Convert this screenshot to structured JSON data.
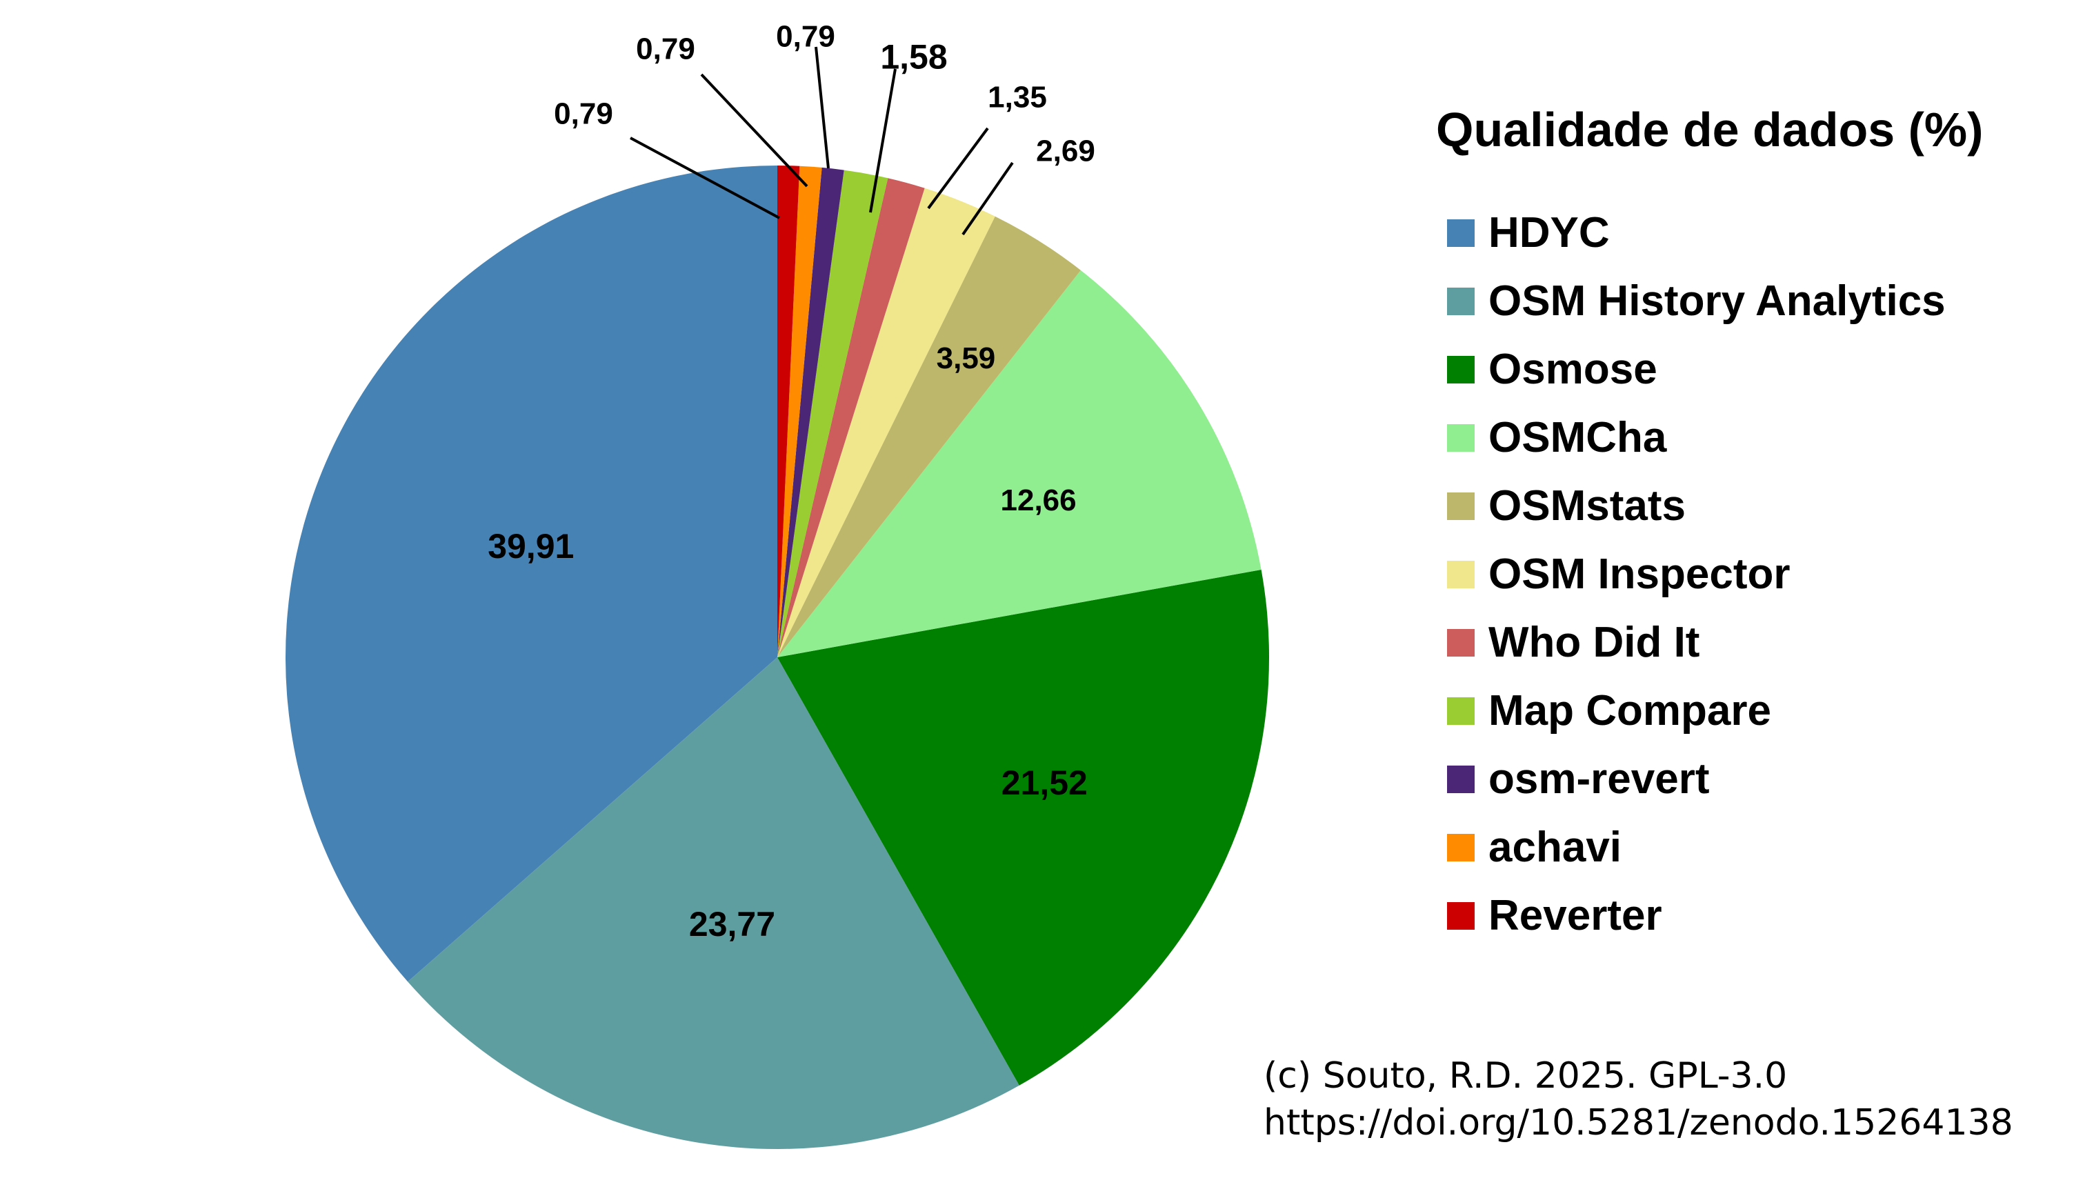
{
  "chart_data": {
    "type": "pie",
    "title": "Qualidade de dados (%)",
    "slices": [
      {
        "label": "HDYC",
        "value": 39.91,
        "value_label": "39,91",
        "color": "#4682b4"
      },
      {
        "label": "OSM History Analytics",
        "value": 23.77,
        "value_label": "23,77",
        "color": "#5f9ea0"
      },
      {
        "label": "Osmose",
        "value": 21.52,
        "value_label": "21,52",
        "color": "#008000"
      },
      {
        "label": "OSMCha",
        "value": 12.66,
        "value_label": "12,66",
        "color": "#90ee90"
      },
      {
        "label": "OSMstats",
        "value": 3.59,
        "value_label": "3,59",
        "color": "#bdb76b"
      },
      {
        "label": "OSM Inspector",
        "value": 2.69,
        "value_label": "2,69",
        "color": "#f0e68c"
      },
      {
        "label": "Who Did It",
        "value": 1.35,
        "value_label": "1,35",
        "color": "#cd5c5c"
      },
      {
        "label": "Map Compare",
        "value": 1.58,
        "value_label": "1,58",
        "color": "#9acd32"
      },
      {
        "label": "osm-revert",
        "value": 0.79,
        "value_label": "0,79",
        "color": "#4b2677"
      },
      {
        "label": "achavi",
        "value": 0.79,
        "value_label": "0,79",
        "color": "#ff8c00"
      },
      {
        "label": "Reverter",
        "value": 0.79,
        "value_label": "0,79",
        "color": "#cc0000"
      }
    ],
    "direction": "clockwise from top",
    "legend_position": "right"
  },
  "credit": {
    "line1": "(c) Souto, R.D. 2025. GPL-3.0",
    "line2": "https://doi.org/10.5281/zenodo.15264138"
  }
}
